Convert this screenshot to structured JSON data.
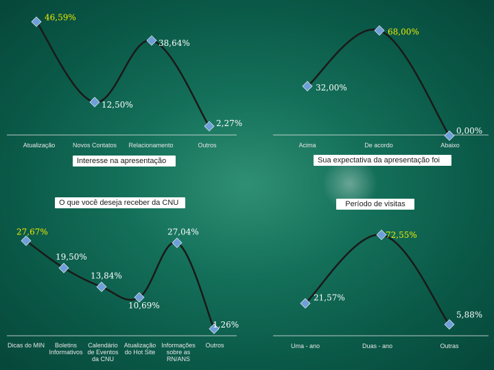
{
  "colors": {
    "line": "#1a1a1a",
    "marker": "#6f9fd8",
    "value_yellow": "#f0ee00",
    "value_white": "#ffffff",
    "axis": "#e8e8e8"
  },
  "chart_data": [
    {
      "type": "line",
      "title": "Interesse na apresentação",
      "categories": [
        "Atualização",
        "Novos Contatos",
        "Relacionamento",
        "Outros"
      ],
      "values": [
        46.59,
        12.5,
        38.64,
        2.27
      ],
      "value_labels": [
        "46,59%",
        "12,50%",
        "38,64%",
        "2,27%"
      ],
      "ylim": [
        0,
        50
      ],
      "grid": false,
      "legend": "none"
    },
    {
      "type": "line",
      "title": "Sua expectativa da apresentação foi",
      "categories": [
        "Acima",
        "De acordo",
        "Abaixo"
      ],
      "values": [
        32.0,
        68.0,
        0.0
      ],
      "value_labels": [
        "32,00%",
        "68,00%",
        "0,00%"
      ],
      "ylim": [
        0,
        70
      ],
      "grid": false,
      "legend": "none"
    },
    {
      "type": "line",
      "title": "O que você deseja receber da CNU",
      "categories": [
        "Dicas do MIN",
        "Boletins Informativos",
        "Calendário de Eventos da CNU",
        "Atualização do Hot Site",
        "Informações sobre as RN/ANS",
        "Outros"
      ],
      "values": [
        27.67,
        19.5,
        13.84,
        10.69,
        27.04,
        1.26
      ],
      "value_labels": [
        "27,67%",
        "19,50%",
        "13,84%",
        "10,69%",
        "27,04%",
        "1,26%"
      ],
      "ylim": [
        0,
        30
      ],
      "grid": false,
      "legend": "none"
    },
    {
      "type": "line",
      "title": "Período de visitas",
      "categories": [
        "Uma - ano",
        "Duas - ano",
        "Outras"
      ],
      "values": [
        21.57,
        72.55,
        5.88
      ],
      "value_labels": [
        "21,57%",
        "72,55%",
        "5,88%"
      ],
      "ylim": [
        0,
        75
      ],
      "grid": false,
      "legend": "none"
    }
  ]
}
